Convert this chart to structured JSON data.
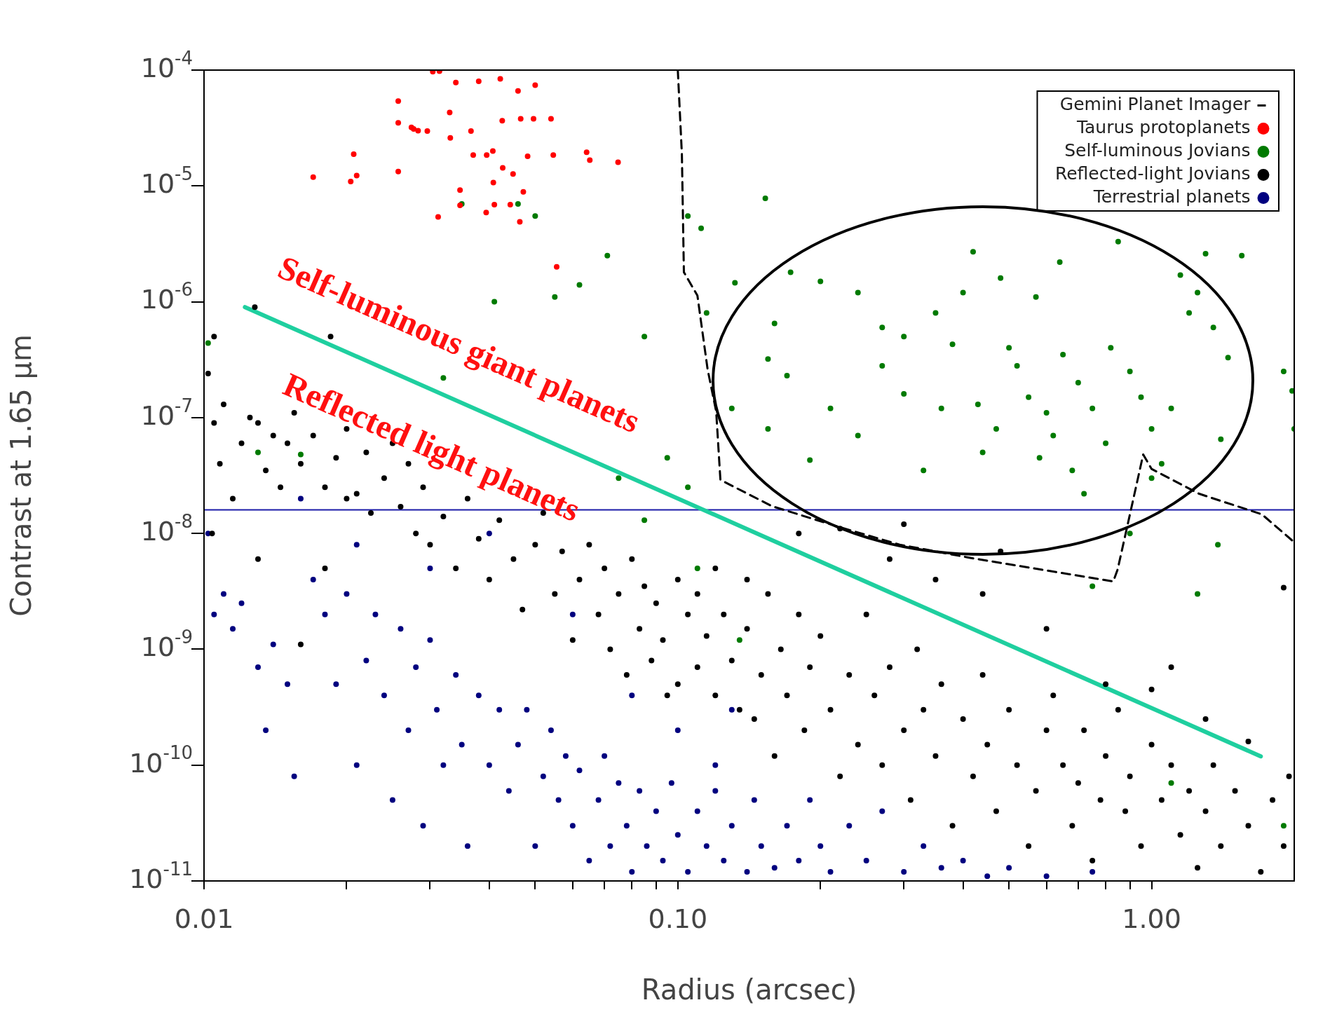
{
  "chart_data": {
    "type": "scatter",
    "xlabel": "Radius (arcsec)",
    "ylabel": "Contrast at 1.65 μm",
    "log": "xy",
    "grid": false,
    "legend": "top right",
    "marker": "circle",
    "xlim": [
      0.01,
      2
    ],
    "xticks": [
      0.01,
      {
        "value": 0.02,
        "label": null
      },
      {
        "value": 0.03,
        "label": null
      },
      {
        "value": 0.04,
        "label": null
      },
      {
        "value": 0.05,
        "label": null
      },
      {
        "value": 0.06,
        "label": null
      },
      {
        "value": 0.07,
        "label": null
      },
      {
        "value": 0.08,
        "label": null
      },
      {
        "value": 0.09,
        "label": null
      },
      {
        "value": 0.1,
        "label": "0.10"
      },
      {
        "value": 0.2,
        "label": null
      },
      {
        "value": 0.3,
        "label": null
      },
      {
        "value": 0.4,
        "label": null
      },
      {
        "value": 0.5,
        "label": null
      },
      {
        "value": 0.6,
        "label": null
      },
      {
        "value": 0.7,
        "label": null
      },
      {
        "value": 0.8,
        "label": null
      },
      {
        "value": 0.9,
        "label": null
      },
      {
        "value": 1,
        "label": "1.00"
      }
    ],
    "ylim": [
      1e-11,
      0.0001
    ],
    "yticks": [
      {
        "value": 1e-11,
        "label": "10$^{-11}$"
      },
      {
        "value": 1e-10,
        "label": "10$^{-10}$"
      },
      {
        "value": 1e-09,
        "label": "10$^{-9}$"
      },
      {
        "value": 1e-08,
        "label": "10$^{-8}$"
      },
      {
        "value": 1e-07,
        "label": "10$^{-7}$"
      },
      {
        "value": 1e-06,
        "label": "10$^{-6}$"
      },
      {
        "value": 1e-05,
        "label": "10$^{-5}$"
      },
      {
        "value": 0.0001,
        "label": "10$^{-4}$"
      }
    ],
    "annotations": [
      "Self-luminous giant planets",
      "Reflected light planets"
    ],
    "ref_lines": [
      {
        "axis": "y",
        "value": 1.6e-08,
        "label": null,
        "color": "#1a1aa8"
      }
    ],
    "series": [
      {
        "name": "Gemini Planet Imager",
        "type": "line",
        "line_style": "dashed",
        "marker": "none",
        "color": "#000000",
        "x": [
          0.1,
          0.102,
          0.103,
          0.11,
          0.1156,
          0.1205,
          0.123,
          0.158,
          0.22,
          0.294,
          0.41,
          0.83,
          0.848,
          0.9,
          0.96,
          1.0,
          1.26,
          1.71,
          1.98
        ],
        "values": [
          0.0001,
          1.88e-05,
          1.8e-06,
          1.13e-06,
          2.6e-07,
          1.13e-07,
          2.9e-08,
          1.72e-08,
          1.13e-08,
          8e-09,
          6.2e-09,
          3.85e-09,
          4.9e-09,
          1.46e-08,
          4.8e-08,
          3.6e-08,
          2.2e-08,
          1.46e-08,
          8.7e-09
        ]
      },
      {
        "name": "Taurus protoplanets",
        "color": "#ff0000",
        "x": [
          0.017,
          0.0207,
          0.0204,
          0.021,
          0.0257,
          0.0257,
          0.0257,
          0.0277,
          0.0283,
          0.0296,
          0.0312,
          0.0314,
          0.033,
          0.0331,
          0.0347,
          0.0347,
          0.0366,
          0.037,
          0.038,
          0.0394,
          0.0395,
          0.0407,
          0.0408,
          0.041,
          0.0422,
          0.0426,
          0.0427,
          0.0443,
          0.0449,
          0.046,
          0.0464,
          0.0466,
          0.0472,
          0.0482,
          0.0496,
          0.05,
          0.054,
          0.0546,
          0.0555,
          0.0642,
          0.0652,
          0.0748,
          0.0304,
          0.034,
          0.0274
        ],
        "values": [
          1.19e-05,
          1.88e-05,
          1.09e-05,
          1.23e-05,
          5.4e-05,
          3.5e-05,
          1.33e-05,
          3.1e-05,
          3e-05,
          2.98e-05,
          5.4e-06,
          9.8e-05,
          4.3e-05,
          2.6e-05,
          9.2e-06,
          6.8e-06,
          2.98e-05,
          1.85e-05,
          8e-05,
          5.9e-06,
          1.85e-05,
          2e-05,
          1.07e-05,
          6.9e-06,
          8.4e-05,
          3.65e-05,
          1.43e-05,
          6.9e-06,
          1.27e-05,
          6.6e-05,
          4.9e-06,
          3.8e-05,
          8.9e-06,
          1.8e-05,
          3.8e-05,
          7.4e-05,
          3.8e-05,
          1.85e-05,
          2e-06,
          1.95e-05,
          1.67e-05,
          1.6e-05,
          9.7e-05,
          7.8e-05,
          3.2e-05
        ]
      },
      {
        "name": "Self-luminous Jovians",
        "color": "#007a00",
        "x": [
          0.105,
          0.112,
          0.153,
          0.132,
          0.173,
          0.115,
          0.16,
          0.2,
          0.24,
          0.27,
          0.3,
          0.35,
          0.42,
          0.4,
          0.48,
          0.57,
          0.64,
          0.85,
          1.15,
          1.3,
          1.25,
          1.35,
          1.45,
          1.55,
          0.155,
          0.17,
          0.21,
          0.24,
          0.19,
          0.155,
          0.13,
          0.27,
          0.3,
          0.33,
          0.36,
          0.38,
          0.43,
          0.44,
          0.47,
          0.5,
          0.52,
          0.55,
          0.58,
          0.6,
          0.65,
          0.7,
          0.75,
          0.8,
          0.82,
          0.9,
          0.95,
          1.0,
          1.05,
          1.1,
          0.62,
          0.68,
          0.72,
          0.9,
          1.0,
          1.2,
          1.4,
          1.38,
          1.25,
          1.9,
          1.98,
          2.0,
          0.75,
          0.135,
          0.035,
          0.05,
          0.046,
          0.041,
          0.055,
          0.062,
          0.071,
          0.085,
          0.032,
          0.0102,
          0.016,
          0.013,
          0.075,
          0.095,
          0.105,
          0.085,
          0.11,
          1.1,
          1.9
        ],
        "values": [
          5.5e-06,
          4.3e-06,
          7.8e-06,
          1.46e-06,
          1.8e-06,
          8e-07,
          6.5e-07,
          1.5e-06,
          1.2e-06,
          6e-07,
          5e-07,
          8e-07,
          2.7e-06,
          1.2e-06,
          1.6e-06,
          1.1e-06,
          2.2e-06,
          3.3e-06,
          1.7e-06,
          2.6e-06,
          1.2e-06,
          6e-07,
          3.3e-07,
          2.5e-06,
          3.2e-07,
          2.3e-07,
          1.2e-07,
          7e-08,
          4.3e-08,
          8e-08,
          1.2e-07,
          2.8e-07,
          1.6e-07,
          3.5e-08,
          1.2e-07,
          4.3e-07,
          1.3e-07,
          5e-08,
          8e-08,
          4e-07,
          2.8e-07,
          1.5e-07,
          4.5e-08,
          1.1e-07,
          3.5e-07,
          2e-07,
          1.2e-07,
          6e-08,
          4e-07,
          2.5e-07,
          1.5e-07,
          8e-08,
          4e-08,
          1.2e-07,
          7e-08,
          3.5e-08,
          2.2e-08,
          1e-08,
          3e-08,
          8e-07,
          6.5e-08,
          8e-09,
          3e-09,
          2.5e-07,
          1.7e-07,
          8e-08,
          3.5e-09,
          1.2e-09,
          7e-06,
          5.5e-06,
          7e-06,
          1e-06,
          1.1e-06,
          1.4e-06,
          2.5e-06,
          5e-07,
          2.2e-07,
          4.4e-07,
          4.8e-08,
          5e-08,
          3e-08,
          4.5e-08,
          2.5e-08,
          1.3e-08,
          5e-09,
          7e-11,
          3e-11
        ]
      },
      {
        "name": "Reflected-light Jovians",
        "color": "#000000",
        "x": [
          0.0102,
          0.0105,
          0.011,
          0.0108,
          0.0115,
          0.012,
          0.0125,
          0.013,
          0.0135,
          0.014,
          0.0145,
          0.015,
          0.0155,
          0.016,
          0.017,
          0.018,
          0.0185,
          0.019,
          0.02,
          0.021,
          0.022,
          0.0225,
          0.024,
          0.025,
          0.026,
          0.027,
          0.028,
          0.029,
          0.03,
          0.0104,
          0.0128,
          0.016,
          0.013,
          0.018,
          0.02,
          0.0105,
          0.032,
          0.034,
          0.036,
          0.038,
          0.04,
          0.042,
          0.045,
          0.047,
          0.05,
          0.052,
          0.055,
          0.057,
          0.06,
          0.062,
          0.065,
          0.068,
          0.07,
          0.072,
          0.075,
          0.078,
          0.08,
          0.083,
          0.085,
          0.088,
          0.09,
          0.093,
          0.095,
          0.1,
          0.1,
          0.105,
          0.11,
          0.11,
          0.115,
          0.12,
          0.12,
          0.125,
          0.13,
          0.135,
          0.14,
          0.145,
          0.15,
          0.155,
          0.16,
          0.165,
          0.17,
          0.18,
          0.185,
          0.19,
          0.2,
          0.21,
          0.22,
          0.23,
          0.24,
          0.25,
          0.26,
          0.27,
          0.28,
          0.3,
          0.31,
          0.32,
          0.33,
          0.35,
          0.36,
          0.38,
          0.4,
          0.42,
          0.44,
          0.45,
          0.47,
          0.5,
          0.52,
          0.55,
          0.57,
          0.6,
          0.62,
          0.65,
          0.68,
          0.7,
          0.72,
          0.75,
          0.78,
          0.8,
          0.85,
          0.88,
          0.9,
          0.95,
          1.0,
          1.05,
          1.1,
          1.15,
          1.2,
          1.25,
          1.3,
          1.35,
          1.4,
          1.5,
          1.6,
          1.7,
          1.8,
          1.9,
          1.95,
          0.44,
          0.6,
          0.8,
          1.0,
          1.3,
          1.6,
          1.9,
          1.1,
          0.48,
          0.35,
          0.28,
          0.22,
          0.18,
          0.14,
          0.3
        ],
        "values": [
          2.4e-07,
          9e-08,
          1.3e-07,
          4e-08,
          2e-08,
          6e-08,
          1e-07,
          9e-08,
          3.5e-08,
          7e-08,
          2.5e-08,
          6e-08,
          1.1e-07,
          4e-08,
          7e-08,
          2.5e-08,
          5e-07,
          4.5e-08,
          8e-08,
          2.2e-08,
          5e-08,
          1.5e-08,
          3e-08,
          6e-08,
          1.7e-08,
          4e-08,
          1e-08,
          2.5e-08,
          8e-09,
          1e-08,
          9e-07,
          1.1e-09,
          6e-09,
          5e-09,
          2e-08,
          5e-07,
          1.4e-08,
          5e-09,
          2e-08,
          9e-09,
          4e-09,
          1.3e-08,
          6e-09,
          2.2e-09,
          8e-09,
          1.5e-08,
          3e-09,
          7e-09,
          1.2e-09,
          4e-09,
          8e-09,
          2e-09,
          5e-09,
          1e-09,
          3e-09,
          6e-10,
          6e-09,
          1.5e-09,
          3.5e-09,
          8e-10,
          2.5e-09,
          1.2e-09,
          4e-10,
          4e-09,
          5e-10,
          2e-09,
          7e-10,
          3e-09,
          1.3e-09,
          5e-09,
          4e-10,
          2e-09,
          8e-10,
          3e-10,
          1.5e-09,
          2.5e-10,
          6e-10,
          3e-09,
          1.2e-10,
          1e-09,
          4e-10,
          2e-09,
          2e-10,
          7e-10,
          1.3e-09,
          3e-10,
          8e-11,
          6e-10,
          1.5e-10,
          2e-09,
          4e-10,
          1e-10,
          7e-10,
          2e-10,
          5e-11,
          1e-09,
          3e-10,
          1.2e-10,
          5e-10,
          3e-11,
          2.5e-10,
          8e-11,
          6e-10,
          1.5e-10,
          4e-11,
          3e-10,
          1e-10,
          2e-11,
          6e-11,
          2e-10,
          4e-10,
          1e-10,
          3e-11,
          7e-11,
          2e-10,
          1.5e-11,
          5e-11,
          1.2e-10,
          3e-10,
          4e-11,
          8e-11,
          2e-11,
          1.5e-10,
          5e-11,
          1e-10,
          2.5e-11,
          6e-11,
          1.3e-11,
          4e-11,
          1e-10,
          2e-11,
          6e-11,
          3e-11,
          1.2e-11,
          5e-11,
          2e-11,
          8e-11,
          3e-09,
          1.5e-09,
          5e-10,
          4.5e-10,
          2.5e-10,
          1.6e-10,
          3.4e-09,
          7e-10,
          7e-09,
          4e-09,
          6e-09,
          1.1e-08,
          1e-08,
          4e-09,
          1.2e-08
        ]
      },
      {
        "name": "Terrestrial planets",
        "color": "#00007f",
        "x": [
          0.0102,
          0.0105,
          0.011,
          0.0115,
          0.012,
          0.013,
          0.0135,
          0.014,
          0.015,
          0.0155,
          0.016,
          0.017,
          0.018,
          0.019,
          0.02,
          0.021,
          0.022,
          0.023,
          0.024,
          0.025,
          0.026,
          0.027,
          0.028,
          0.029,
          0.03,
          0.031,
          0.032,
          0.034,
          0.035,
          0.036,
          0.038,
          0.04,
          0.042,
          0.044,
          0.046,
          0.048,
          0.05,
          0.052,
          0.054,
          0.056,
          0.058,
          0.06,
          0.062,
          0.065,
          0.068,
          0.07,
          0.072,
          0.075,
          0.078,
          0.08,
          0.083,
          0.086,
          0.09,
          0.093,
          0.097,
          0.1,
          0.105,
          0.11,
          0.115,
          0.12,
          0.125,
          0.13,
          0.14,
          0.145,
          0.15,
          0.16,
          0.17,
          0.18,
          0.19,
          0.2,
          0.21,
          0.23,
          0.25,
          0.27,
          0.3,
          0.33,
          0.36,
          0.4,
          0.45,
          0.5,
          0.6,
          0.75,
          0.04,
          0.03,
          0.021,
          0.06,
          0.08,
          0.1,
          0.12,
          0.13
        ],
        "values": [
          1e-08,
          2e-09,
          3e-09,
          1.5e-09,
          2.5e-09,
          7e-10,
          2e-10,
          1.1e-09,
          5e-10,
          8e-11,
          2e-08,
          4e-09,
          2e-09,
          5e-10,
          3e-09,
          1e-10,
          8e-10,
          2e-09,
          4e-10,
          5e-11,
          1.5e-09,
          2e-10,
          7e-10,
          3e-11,
          1.2e-09,
          3e-10,
          1e-10,
          6e-10,
          1.5e-10,
          2e-11,
          4e-10,
          1e-10,
          3e-10,
          6e-11,
          1.5e-10,
          3e-10,
          2e-11,
          8e-11,
          2e-10,
          5e-11,
          1.2e-10,
          3e-11,
          9e-11,
          1.5e-11,
          5e-11,
          1.2e-10,
          2e-11,
          7e-11,
          3e-11,
          1.2e-11,
          6e-11,
          2e-11,
          4e-11,
          1.5e-11,
          7e-11,
          2.5e-11,
          1.2e-11,
          4e-11,
          2e-11,
          6e-11,
          1.5e-11,
          3e-11,
          1.2e-11,
          5e-11,
          2e-11,
          1.3e-11,
          3e-11,
          1.5e-11,
          5e-11,
          2e-11,
          1.2e-11,
          3e-11,
          1.5e-11,
          4e-11,
          1.2e-11,
          2e-11,
          1.3e-11,
          1.5e-11,
          1.1e-11,
          1.3e-11,
          1.1e-11,
          1.2e-11,
          1e-08,
          5e-09,
          8e-09,
          2e-09,
          4e-10,
          2e-10,
          1e-10,
          3e-10
        ]
      },
      {
        "type": "line",
        "marker": "none",
        "color": "#1fcf9f",
        "x": [
          0.0122,
          1.7
        ],
        "values": [
          9e-07,
          1.19e-10
        ]
      }
    ]
  }
}
